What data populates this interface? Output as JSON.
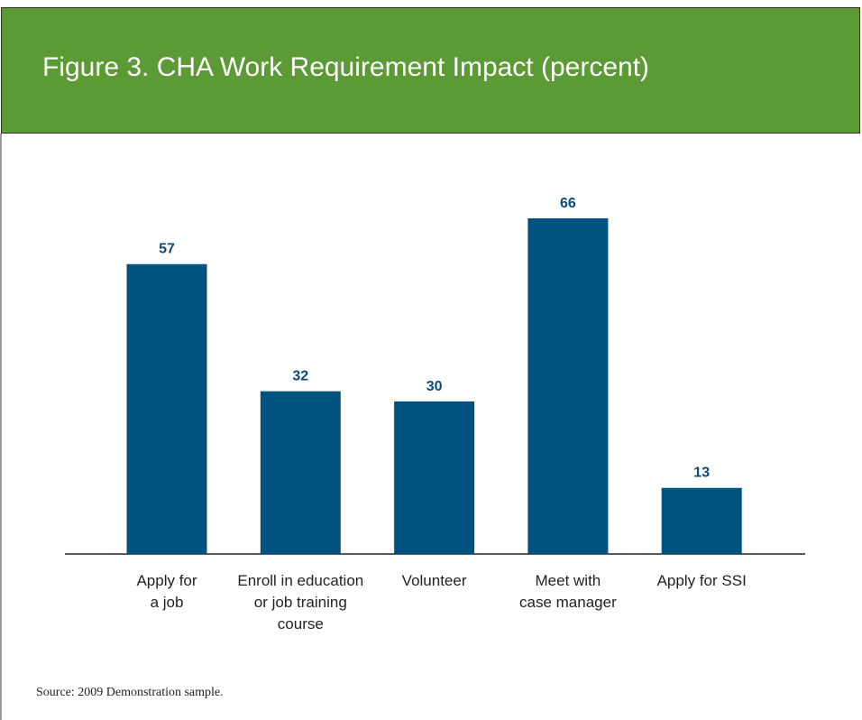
{
  "chart_data": {
    "type": "bar",
    "title": "Figure 3. CHA Work Requirement Impact (percent)",
    "categories": [
      "Apply for\na job",
      "Enroll in education\nor job training\ncourse",
      "Volunteer",
      "Meet with\ncase manager",
      "Apply for SSI"
    ],
    "values": [
      57,
      32,
      30,
      66,
      13
    ],
    "color": "#02527f",
    "label_color": "#0b4a78",
    "header_color": "#5b9a35",
    "source": "Source: 2009 Demonstration sample."
  }
}
